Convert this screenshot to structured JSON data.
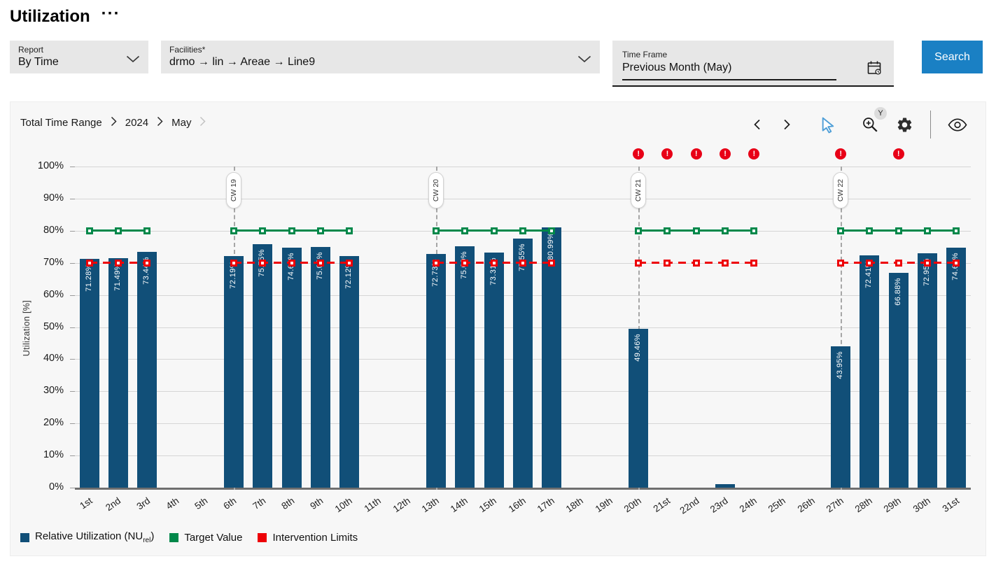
{
  "page": {
    "title": "Utilization",
    "overflow_menu": "···"
  },
  "filters": {
    "report": {
      "label": "Report",
      "value": "By Time"
    },
    "facilities": {
      "label": "Facilities*",
      "value": "drmo → lin → Areae → Line9"
    },
    "time_frame": {
      "label": "Time Frame",
      "value": "Previous Month (May)"
    },
    "search_label": "Search"
  },
  "breadcrumb": {
    "items": [
      "Total Time Range",
      "2024",
      "May"
    ]
  },
  "toolbar": {
    "zoom_badge": "Y"
  },
  "colors": {
    "accent": "#1a80c4"
  },
  "chart_data": {
    "type": "bar",
    "title": "",
    "xlabel": "",
    "ylabel": "Utilization [%]",
    "ylim": [
      0,
      100
    ],
    "ytick_step": 10,
    "grid": true,
    "legend_position": "bottom",
    "categories": [
      "1st",
      "2nd",
      "3rd",
      "4th",
      "5th",
      "6th",
      "7th",
      "8th",
      "9th",
      "10th",
      "11th",
      "12th",
      "13th",
      "14th",
      "15th",
      "16th",
      "17th",
      "18th",
      "19th",
      "20th",
      "21st",
      "22nd",
      "23rd",
      "24th",
      "25th",
      "26th",
      "27th",
      "28th",
      "29th",
      "30th",
      "31st"
    ],
    "bars": [
      {
        "day": 1,
        "value": 71.28,
        "label": "71.28%"
      },
      {
        "day": 2,
        "value": 71.49,
        "label": "71.49%"
      },
      {
        "day": 3,
        "value": 73.44,
        "label": "73.44%"
      },
      {
        "day": 6,
        "value": 72.19,
        "label": "72.19%"
      },
      {
        "day": 7,
        "value": 75.75,
        "label": "75.75%"
      },
      {
        "day": 8,
        "value": 74.69,
        "label": "74.69%"
      },
      {
        "day": 9,
        "value": 75.02,
        "label": "75.02%"
      },
      {
        "day": 10,
        "value": 72.12,
        "label": "72.12%"
      },
      {
        "day": 13,
        "value": 72.73,
        "label": "72.73%"
      },
      {
        "day": 14,
        "value": 75.09,
        "label": "75.09%"
      },
      {
        "day": 15,
        "value": 73.31,
        "label": "73.31%"
      },
      {
        "day": 16,
        "value": 77.55,
        "label": "77.55%"
      },
      {
        "day": 17,
        "value": 80.99,
        "label": "80.99%"
      },
      {
        "day": 20,
        "value": 49.46,
        "label": "49.46%"
      },
      {
        "day": 23,
        "value": 1.0,
        "label": ""
      },
      {
        "day": 27,
        "value": 43.95,
        "label": "43.95%"
      },
      {
        "day": 28,
        "value": 72.41,
        "label": "72.41%"
      },
      {
        "day": 29,
        "value": 66.88,
        "label": "66.88%"
      },
      {
        "day": 30,
        "value": 72.95,
        "label": "72.95%"
      },
      {
        "day": 31,
        "value": 74.68,
        "label": "74.68%"
      }
    ],
    "target_value": {
      "name": "Target Value",
      "value": 80
    },
    "intervention_limit": {
      "name": "Intervention Limits",
      "value": 70
    },
    "week_ranges": [
      {
        "from": 1,
        "to": 3
      },
      {
        "from": 6,
        "to": 10
      },
      {
        "from": 13,
        "to": 17
      },
      {
        "from": 20,
        "to": 24
      },
      {
        "from": 27,
        "to": 31
      }
    ],
    "calendar_week_markers": [
      {
        "label": "CW 19",
        "day": 6
      },
      {
        "label": "CW 20",
        "day": 13
      },
      {
        "label": "CW 21",
        "day": 20
      },
      {
        "label": "CW 22",
        "day": 27
      }
    ],
    "alert_days": [
      20,
      21,
      22,
      23,
      24,
      27,
      29
    ],
    "colors": {
      "bar": "#114f78",
      "target": "#00884a",
      "limit": "#ed0007"
    }
  },
  "legend": {
    "items": [
      {
        "label_pre": "Relative Utilization (NU",
        "label_sub": "rel",
        "label_post": ")",
        "color": "#114f78"
      },
      {
        "label": "Target Value",
        "color": "#00884a"
      },
      {
        "label": "Intervention Limits",
        "color": "#ed0007"
      }
    ]
  }
}
